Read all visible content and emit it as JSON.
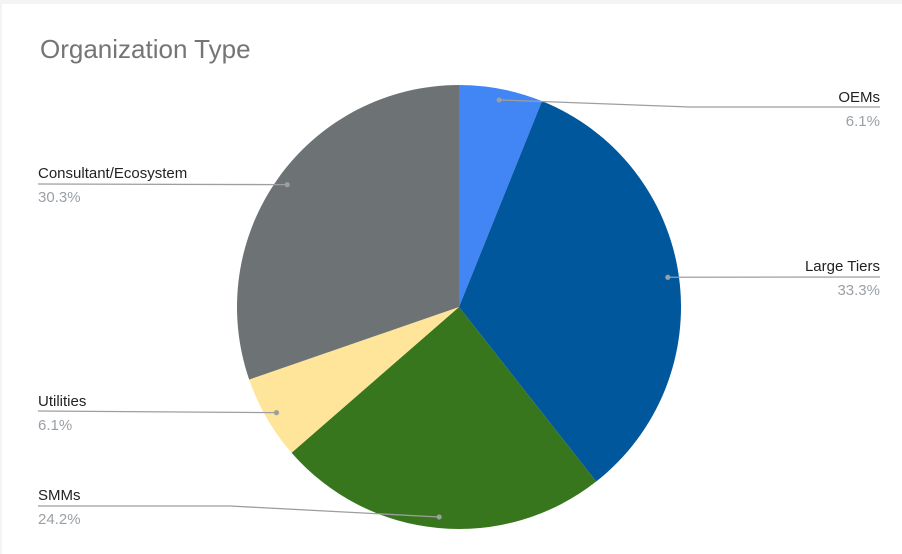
{
  "chart_data": {
    "type": "pie",
    "title": "Organization Type",
    "slices": [
      {
        "label": "OEMs",
        "value": 6.1,
        "display": "6.1%",
        "color": "#4285f4"
      },
      {
        "label": "Large Tiers",
        "value": 33.3,
        "display": "33.3%",
        "color": "#01579b"
      },
      {
        "label": "SMMs",
        "value": 24.2,
        "display": "24.2%",
        "color": "#38761d"
      },
      {
        "label": "Utilities",
        "value": 6.1,
        "display": "6.1%",
        "color": "#ffe599"
      },
      {
        "label": "Consultant/Ecosystem",
        "value": 30.3,
        "display": "30.3%",
        "color": "#6d7275"
      }
    ],
    "start_angle_deg": 0,
    "direction": "clockwise",
    "legend": "labels-with-leader-lines"
  }
}
